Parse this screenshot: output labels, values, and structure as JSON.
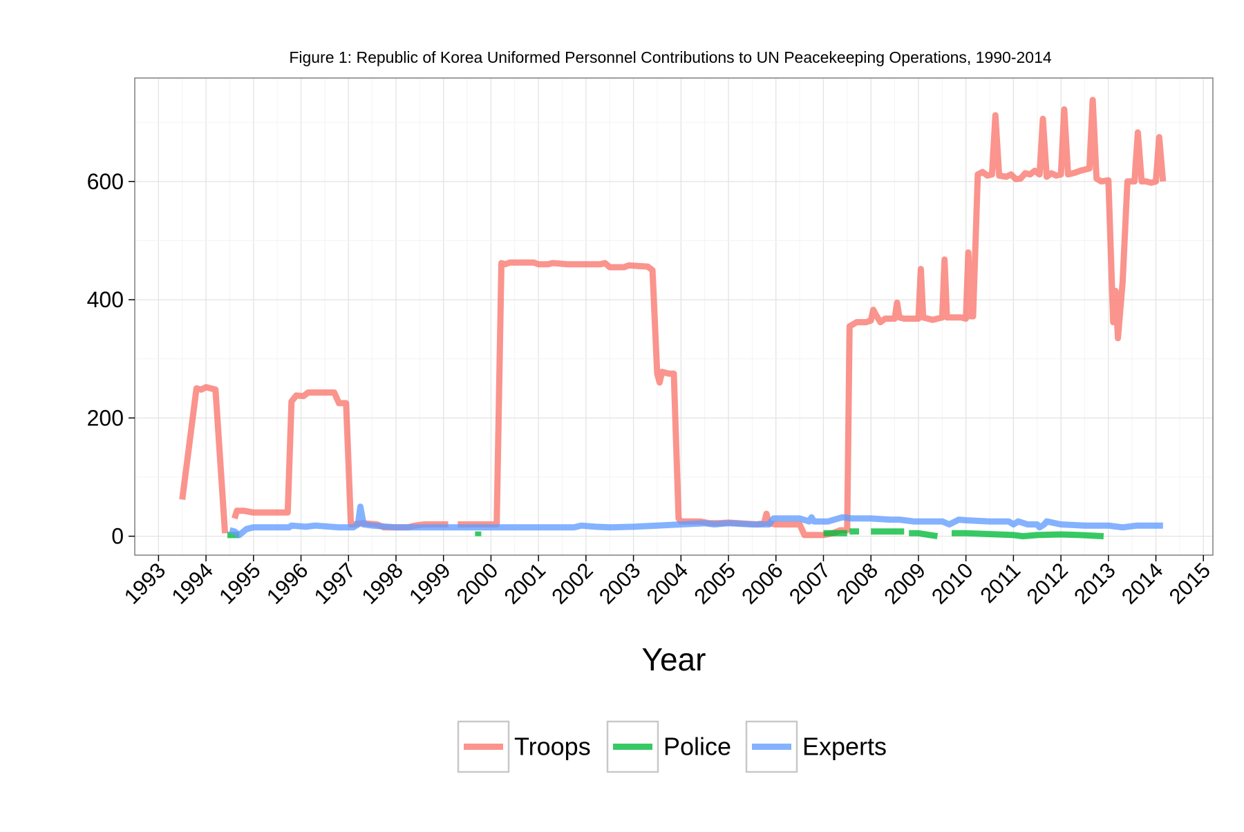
{
  "chart_data": {
    "type": "line",
    "title": "Figure 1: Republic of Korea Uniformed Personnel Contributions to UN Peacekeeping Operations, 1990-2014",
    "xlabel": "Year",
    "ylabel": "",
    "xlim": [
      1992.5,
      2015.2
    ],
    "ylim": [
      -32,
      775
    ],
    "x_ticks": [
      "1993",
      "1994",
      "1995",
      "1996",
      "1997",
      "1998",
      "1999",
      "2000",
      "2001",
      "2002",
      "2003",
      "2004",
      "2005",
      "2006",
      "2007",
      "2008",
      "2009",
      "2010",
      "2011",
      "2012",
      "2013",
      "2014",
      "2015"
    ],
    "y_ticks": [
      "0",
      "200",
      "400",
      "600"
    ],
    "grid": true,
    "legend_position": "bottom",
    "series": [
      {
        "name": "Troops",
        "color": "#F8766D",
        "segments": [
          [
            [
              1993.5,
              62
            ],
            [
              1993.8,
              250
            ],
            [
              1993.9,
              248
            ],
            [
              1994.0,
              252
            ],
            [
              1994.1,
              250
            ],
            [
              1994.2,
              248
            ],
            [
              1994.4,
              5
            ]
          ],
          [
            [
              1994.6,
              30
            ],
            [
              1994.65,
              43
            ],
            [
              1994.8,
              43
            ],
            [
              1995.0,
              40
            ],
            [
              1995.2,
              40
            ],
            [
              1995.5,
              40
            ],
            [
              1995.72,
              40
            ],
            [
              1995.8,
              228
            ],
            [
              1995.9,
              238
            ],
            [
              1996.05,
              237
            ],
            [
              1996.15,
              243
            ],
            [
              1996.5,
              243
            ],
            [
              1996.7,
              243
            ],
            [
              1996.8,
              225
            ],
            [
              1996.95,
              225
            ],
            [
              1997.05,
              20
            ],
            [
              1997.1,
              20
            ],
            [
              1997.3,
              22
            ],
            [
              1997.6,
              20
            ],
            [
              1997.75,
              15
            ],
            [
              1998.0,
              15
            ],
            [
              1998.25,
              15
            ],
            [
              1998.4,
              18
            ],
            [
              1998.6,
              20
            ],
            [
              1998.9,
              20
            ],
            [
              1999.1,
              20
            ]
          ],
          [
            [
              1999.3,
              20
            ],
            [
              1999.5,
              20
            ],
            [
              1999.8,
              20
            ],
            [
              2000.0,
              20
            ],
            [
              2000.12,
              20
            ],
            [
              2000.22,
              462
            ],
            [
              2000.3,
              460
            ],
            [
              2000.4,
              463
            ],
            [
              2000.6,
              463
            ],
            [
              2000.9,
              463
            ],
            [
              2001.0,
              460
            ],
            [
              2001.2,
              460
            ],
            [
              2001.3,
              462
            ],
            [
              2001.6,
              460
            ],
            [
              2001.9,
              460
            ],
            [
              2002.1,
              460
            ],
            [
              2002.3,
              460
            ],
            [
              2002.4,
              462
            ],
            [
              2002.5,
              455
            ],
            [
              2002.8,
              455
            ],
            [
              2002.9,
              458
            ],
            [
              2003.1,
              457
            ],
            [
              2003.3,
              456
            ],
            [
              2003.4,
              450
            ],
            [
              2003.5,
              275
            ],
            [
              2003.55,
              260
            ],
            [
              2003.6,
              278
            ],
            [
              2003.75,
              275
            ],
            [
              2003.85,
              275
            ],
            [
              2003.95,
              30
            ],
            [
              2004.0,
              25
            ],
            [
              2004.2,
              25
            ],
            [
              2004.4,
              25
            ],
            [
              2004.6,
              22
            ],
            [
              2004.8,
              22
            ],
            [
              2005.0,
              23
            ],
            [
              2005.2,
              22
            ],
            [
              2005.6,
              20
            ],
            [
              2005.75,
              22
            ],
            [
              2005.8,
              38
            ],
            [
              2005.85,
              22
            ],
            [
              2006.0,
              20
            ],
            [
              2006.2,
              20
            ],
            [
              2006.5,
              20
            ],
            [
              2006.6,
              2
            ],
            [
              2006.8,
              2
            ],
            [
              2007.0,
              2
            ],
            [
              2007.2,
              5
            ],
            [
              2007.35,
              10
            ],
            [
              2007.5,
              10
            ],
            [
              2007.55,
              355
            ],
            [
              2007.7,
              362
            ],
            [
              2007.9,
              362
            ],
            [
              2008.0,
              365
            ],
            [
              2008.05,
              383
            ],
            [
              2008.1,
              375
            ],
            [
              2008.2,
              362
            ],
            [
              2008.3,
              368
            ],
            [
              2008.5,
              368
            ],
            [
              2008.55,
              395
            ],
            [
              2008.6,
              370
            ],
            [
              2008.7,
              368
            ],
            [
              2009.0,
              368
            ],
            [
              2009.05,
              452
            ],
            [
              2009.1,
              370
            ],
            [
              2009.3,
              366
            ],
            [
              2009.4,
              368
            ],
            [
              2009.5,
              370
            ],
            [
              2009.55,
              468
            ],
            [
              2009.6,
              370
            ],
            [
              2009.8,
              370
            ],
            [
              2009.9,
              370
            ],
            [
              2010.0,
              368
            ],
            [
              2010.05,
              480
            ],
            [
              2010.1,
              372
            ],
            [
              2010.15,
              372
            ],
            [
              2010.25,
              612
            ],
            [
              2010.35,
              616
            ],
            [
              2010.45,
              610
            ],
            [
              2010.55,
              612
            ],
            [
              2010.62,
              712
            ],
            [
              2010.7,
              610
            ],
            [
              2010.85,
              608
            ],
            [
              2010.95,
              612
            ],
            [
              2011.05,
              604
            ],
            [
              2011.15,
              605
            ],
            [
              2011.25,
              614
            ],
            [
              2011.35,
              612
            ],
            [
              2011.45,
              618
            ],
            [
              2011.55,
              612
            ],
            [
              2011.62,
              706
            ],
            [
              2011.7,
              608
            ],
            [
              2011.8,
              614
            ],
            [
              2011.9,
              610
            ],
            [
              2012.0,
              612
            ],
            [
              2012.07,
              722
            ],
            [
              2012.15,
              612
            ],
            [
              2012.3,
              615
            ],
            [
              2012.4,
              618
            ],
            [
              2012.5,
              620
            ],
            [
              2012.6,
              622
            ],
            [
              2012.67,
              738
            ],
            [
              2012.75,
              605
            ],
            [
              2012.85,
              600
            ],
            [
              2013.0,
              602
            ],
            [
              2013.1,
              362
            ],
            [
              2013.15,
              415
            ],
            [
              2013.2,
              335
            ],
            [
              2013.3,
              430
            ],
            [
              2013.4,
              600
            ],
            [
              2013.55,
              600
            ],
            [
              2013.62,
              683
            ],
            [
              2013.7,
              600
            ],
            [
              2013.8,
              600
            ],
            [
              2013.9,
              598
            ],
            [
              2014.0,
              600
            ],
            [
              2014.07,
              675
            ],
            [
              2014.15,
              600
            ]
          ]
        ]
      },
      {
        "name": "Police",
        "color": "#00BA38",
        "segments": [
          [
            [
              1994.45,
              2
            ],
            [
              1994.7,
              2
            ]
          ],
          [
            [
              1999.73,
              0
            ],
            [
              1999.73,
              8
            ]
          ],
          [
            [
              2007.0,
              5
            ],
            [
              2007.5,
              5
            ]
          ],
          [
            [
              2007.55,
              8
            ],
            [
              2007.75,
              8
            ]
          ],
          [
            [
              2008.0,
              8
            ],
            [
              2008.7,
              8
            ]
          ],
          [
            [
              2008.8,
              5
            ],
            [
              2009.0,
              5
            ],
            [
              2009.4,
              0
            ]
          ],
          [
            [
              2009.7,
              5
            ],
            [
              2010.0,
              5
            ],
            [
              2011.0,
              2
            ],
            [
              2011.2,
              0
            ],
            [
              2011.5,
              2
            ],
            [
              2012.0,
              3
            ],
            [
              2012.4,
              2
            ],
            [
              2012.9,
              0
            ]
          ]
        ]
      },
      {
        "name": "Experts",
        "color": "#619CFF",
        "segments": [
          [
            [
              1994.5,
              10
            ],
            [
              1994.6,
              8
            ],
            [
              1994.7,
              2
            ],
            [
              1994.85,
              12
            ],
            [
              1995.0,
              15
            ],
            [
              1995.5,
              15
            ],
            [
              1995.75,
              15
            ],
            [
              1995.8,
              18
            ],
            [
              1996.1,
              16
            ],
            [
              1996.3,
              18
            ],
            [
              1996.8,
              15
            ],
            [
              1997.1,
              15
            ],
            [
              1997.2,
              20
            ],
            [
              1997.25,
              50
            ],
            [
              1997.32,
              20
            ],
            [
              1997.5,
              18
            ],
            [
              1998.0,
              15
            ],
            [
              1998.6,
              15
            ],
            [
              1999.05,
              15
            ],
            [
              1999.5,
              15
            ],
            [
              2000.0,
              15
            ],
            [
              2000.5,
              15
            ],
            [
              2001.0,
              15
            ],
            [
              2001.5,
              15
            ],
            [
              2001.75,
              15
            ],
            [
              2001.9,
              18
            ],
            [
              2002.2,
              16
            ],
            [
              2002.5,
              15
            ],
            [
              2003.0,
              16
            ],
            [
              2003.5,
              18
            ],
            [
              2004.0,
              20
            ],
            [
              2004.5,
              22
            ],
            [
              2004.7,
              20
            ],
            [
              2005.0,
              22
            ],
            [
              2005.5,
              20
            ],
            [
              2005.85,
              20
            ],
            [
              2005.95,
              30
            ],
            [
              2006.3,
              30
            ],
            [
              2006.5,
              30
            ],
            [
              2006.7,
              25
            ],
            [
              2006.75,
              32
            ],
            [
              2006.8,
              25
            ],
            [
              2007.1,
              25
            ],
            [
              2007.4,
              32
            ],
            [
              2007.6,
              30
            ],
            [
              2008.0,
              30
            ],
            [
              2008.4,
              28
            ],
            [
              2008.6,
              28
            ],
            [
              2008.9,
              25
            ],
            [
              2009.0,
              25
            ],
            [
              2009.5,
              25
            ],
            [
              2009.65,
              20
            ],
            [
              2009.85,
              28
            ],
            [
              2010.0,
              27
            ],
            [
              2010.5,
              25
            ],
            [
              2010.9,
              25
            ],
            [
              2011.0,
              20
            ],
            [
              2011.1,
              25
            ],
            [
              2011.3,
              20
            ],
            [
              2011.5,
              20
            ],
            [
              2011.55,
              15
            ],
            [
              2011.65,
              20
            ],
            [
              2011.7,
              25
            ],
            [
              2012.0,
              20
            ],
            [
              2012.5,
              18
            ],
            [
              2012.8,
              18
            ],
            [
              2013.0,
              18
            ],
            [
              2013.3,
              15
            ],
            [
              2013.6,
              18
            ],
            [
              2013.8,
              18
            ],
            [
              2014.0,
              18
            ],
            [
              2014.15,
              18
            ]
          ]
        ]
      }
    ]
  }
}
